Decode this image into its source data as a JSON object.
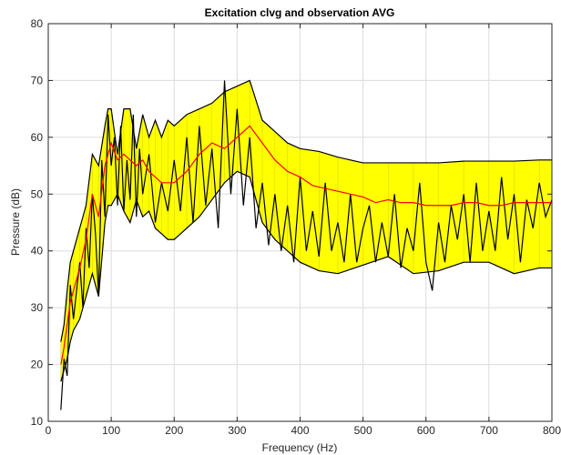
{
  "chart_data": {
    "type": "area",
    "title": "Excitation clvg and observation AVG",
    "xlabel": "Frequency (Hz)",
    "ylabel": "Pressure (dB)",
    "xlim": [
      0,
      800
    ],
    "ylim": [
      10,
      80
    ],
    "xticks": [
      0,
      100,
      200,
      300,
      400,
      500,
      600,
      700,
      800
    ],
    "yticks": [
      10,
      20,
      30,
      40,
      50,
      60,
      70,
      80
    ],
    "xtick_labels": [
      "0",
      "100",
      "200",
      "300",
      "400",
      "500",
      "600",
      "700",
      "800"
    ],
    "ytick_labels": [
      "10",
      "20",
      "30",
      "40",
      "50",
      "60",
      "70",
      "80"
    ],
    "grid": true,
    "colors": {
      "band_fill": "#ffff00",
      "band_edge": "#000000",
      "mean": "#ff0000",
      "observation": "#000000"
    },
    "band_upper": {
      "x": [
        20,
        25,
        30,
        35,
        40,
        50,
        60,
        70,
        80,
        90,
        95,
        100,
        110,
        120,
        130,
        140,
        150,
        160,
        170,
        180,
        190,
        200,
        220,
        240,
        260,
        280,
        300,
        320,
        340,
        360,
        380,
        400,
        430,
        460,
        500,
        540,
        580,
        620,
        660,
        700,
        740,
        780,
        800
      ],
      "y": [
        24,
        27,
        33,
        38,
        40,
        44,
        48,
        57,
        55,
        62,
        65,
        65,
        57,
        65,
        65,
        58,
        64,
        60,
        63,
        60,
        63,
        62,
        64,
        65,
        66,
        68,
        69,
        70,
        63,
        61,
        59,
        58,
        57.5,
        56.5,
        55.5,
        55.5,
        55.5,
        55.5,
        55.8,
        55.8,
        55.8,
        56,
        56
      ]
    },
    "band_lower": {
      "x": [
        20,
        25,
        30,
        35,
        40,
        50,
        60,
        70,
        80,
        90,
        95,
        100,
        110,
        120,
        130,
        140,
        150,
        160,
        170,
        180,
        190,
        200,
        220,
        240,
        260,
        280,
        300,
        320,
        340,
        360,
        380,
        400,
        430,
        460,
        500,
        540,
        580,
        620,
        660,
        700,
        740,
        780,
        800
      ],
      "y": [
        17,
        19,
        21,
        24,
        26,
        28,
        32,
        36,
        32,
        45,
        48,
        48,
        50,
        47,
        45,
        49,
        46,
        47,
        44,
        43,
        42,
        42,
        44,
        46,
        49,
        52,
        54,
        53,
        45,
        42,
        40,
        38,
        36.5,
        36,
        37.5,
        39,
        36,
        36.5,
        38,
        38,
        36,
        37,
        37
      ]
    },
    "series": [
      {
        "x": [
          20,
          25,
          30,
          35,
          40,
          50,
          60,
          70,
          80,
          90,
          100,
          110,
          120,
          130,
          140,
          150,
          160,
          170,
          180,
          190,
          200,
          220,
          240,
          260,
          280,
          300,
          320,
          340,
          360,
          380,
          400,
          420,
          440,
          460,
          480,
          500,
          520,
          540,
          560,
          580,
          600,
          620,
          640,
          660,
          680,
          700,
          720,
          740,
          760,
          780,
          800
        ],
        "y": [
          20,
          23,
          27,
          31,
          33,
          37,
          42,
          50,
          46,
          55,
          59,
          56,
          57,
          56,
          55,
          56,
          54,
          53,
          52,
          52,
          52,
          54,
          57,
          59,
          58,
          60,
          62,
          59,
          56,
          54,
          53,
          51.5,
          51,
          50.5,
          50,
          49.5,
          48.5,
          49,
          48.5,
          48.5,
          48,
          48,
          48,
          48.5,
          48.5,
          48,
          48,
          48.5,
          48.5,
          48.5,
          48.5
        ]
      },
      {
        "x": [
          20,
          25,
          30,
          35,
          40,
          45,
          50,
          55,
          60,
          65,
          70,
          75,
          80,
          85,
          90,
          95,
          100,
          105,
          110,
          115,
          120,
          125,
          130,
          135,
          140,
          145,
          150,
          160,
          170,
          180,
          190,
          200,
          210,
          220,
          230,
          240,
          250,
          260,
          270,
          280,
          290,
          300,
          310,
          320,
          330,
          340,
          350,
          360,
          370,
          380,
          390,
          400,
          410,
          420,
          430,
          440,
          450,
          460,
          470,
          480,
          490,
          500,
          510,
          520,
          530,
          540,
          550,
          560,
          570,
          580,
          590,
          600,
          610,
          620,
          630,
          640,
          650,
          660,
          670,
          680,
          690,
          700,
          710,
          720,
          730,
          740,
          750,
          760,
          770,
          780,
          790,
          800
        ],
        "y": [
          12,
          21,
          18,
          34,
          28,
          33,
          38,
          30,
          44,
          37,
          50,
          43,
          32,
          56,
          46,
          64,
          55,
          60,
          48,
          62,
          47,
          56,
          49,
          64,
          46,
          58,
          50,
          57,
          45,
          52,
          47,
          56,
          47,
          60,
          45,
          62,
          48,
          58,
          44,
          70,
          50,
          65,
          48,
          60,
          44,
          52,
          41,
          50,
          40,
          48,
          38,
          53,
          40,
          47,
          39,
          52,
          40,
          45,
          38,
          50,
          38,
          44,
          48,
          38,
          45,
          39,
          50,
          37,
          44,
          40,
          52,
          38,
          33,
          45,
          38,
          48,
          42,
          50,
          38,
          52,
          40,
          47,
          40,
          53,
          42,
          50,
          38,
          49,
          44,
          52,
          46,
          49
        ]
      }
    ]
  }
}
